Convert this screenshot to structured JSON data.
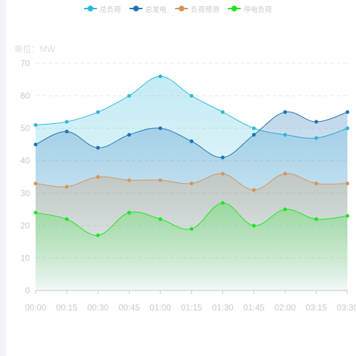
{
  "chart_data": {
    "type": "area",
    "unit_label": "单位：MW",
    "categories": [
      "00:00",
      "00:15",
      "00:30",
      "00:45",
      "01:00",
      "01:15",
      "01:30",
      "01:45",
      "02:00",
      "03:15",
      "03:30"
    ],
    "ylim": [
      0,
      70
    ],
    "yticks": [
      0,
      10,
      20,
      30,
      40,
      50,
      60,
      70
    ],
    "grid": true,
    "legend_position": "top-center",
    "series": [
      {
        "name": "总负荷",
        "color": "#2bb8d8",
        "values": [
          51,
          52,
          55,
          60,
          66,
          60,
          55,
          50,
          48,
          47,
          50
        ]
      },
      {
        "name": "总发电",
        "color": "#1f73b7",
        "values": [
          45,
          49,
          44,
          48,
          50,
          46,
          41,
          48,
          55,
          52,
          55
        ]
      },
      {
        "name": "负荷预测",
        "color": "#d4955b",
        "values": [
          33,
          32,
          35,
          34,
          34,
          33,
          36,
          31,
          36,
          33,
          33
        ]
      },
      {
        "name": "停电负荷",
        "color": "#1ee61e",
        "values": [
          24,
          22,
          17,
          24,
          22,
          19,
          27,
          20,
          25,
          22,
          23
        ]
      }
    ]
  }
}
